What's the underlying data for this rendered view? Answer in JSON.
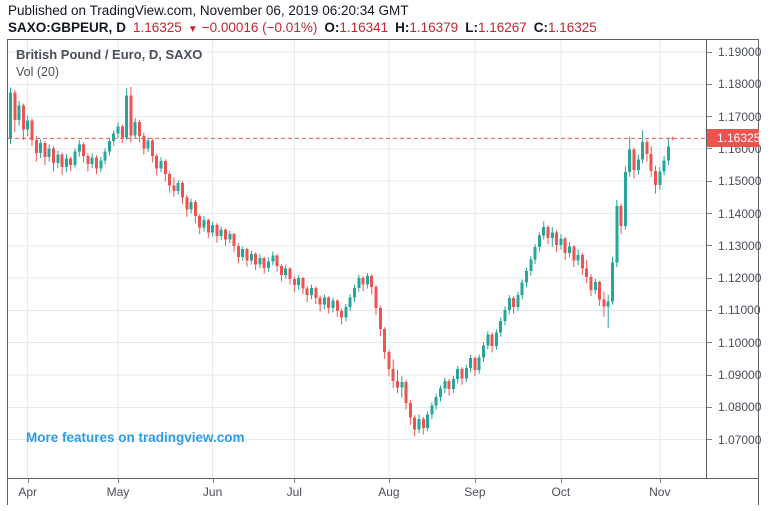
{
  "header": {
    "published": "Published on TradingView.com, November 06, 2019 06:20:34 GMT",
    "symbol": "SAXO:GBPEUR,",
    "timeframe": "D",
    "price": "1.16325",
    "direction_icon": "▼",
    "change": "−0.00016 (−0.01%)",
    "open_label": "O:",
    "open": "1.16341",
    "high_label": "H:",
    "high": "1.16379",
    "low_label": "L:",
    "low": "1.16267",
    "close_label": "C:",
    "close": "1.16325"
  },
  "chart": {
    "title": "British Pound / Euro, D, SAXO",
    "indicator": "Vol (20)",
    "watermark": "More features on tradingview.com",
    "price_label": "1.16325"
  },
  "colors": {
    "up": "#26a69a",
    "down": "#ef5350",
    "price_line": "#ef5350",
    "price_label_bg": "#ef5350",
    "grid": "#e5ebf1",
    "link_blue": "#2d9ce8",
    "header_red": "#c4252f",
    "frame": "#5b6069"
  },
  "chart_data": {
    "type": "candlestick",
    "symbol": "SAXO:GBPEUR",
    "timeframe": "D",
    "title": "British Pound / Euro, D, SAXO",
    "ylim": [
      1.05812,
      1.19372
    ],
    "y_ticks": [
      "1.19000",
      "1.18000",
      "1.17000",
      "1.16000",
      "1.15000",
      "1.14000",
      "1.13000",
      "1.12000",
      "1.11000",
      "1.10000",
      "1.09000",
      "1.08000",
      "1.07000"
    ],
    "month_ticks": [
      {
        "label": "Apr",
        "index": 4
      },
      {
        "label": "May",
        "index": 25
      },
      {
        "label": "Jun",
        "index": 47
      },
      {
        "label": "Jul",
        "index": 66
      },
      {
        "label": "Aug",
        "index": 88
      },
      {
        "label": "Sep",
        "index": 108
      },
      {
        "label": "Oct",
        "index": 128
      },
      {
        "label": "Nov",
        "index": 151
      }
    ],
    "price_line": 1.16325,
    "last": {
      "open": 1.16341,
      "high": 1.16379,
      "low": 1.16267,
      "close": 1.16325
    },
    "candles": [
      [
        1.163,
        1.179,
        1.1615,
        1.1775
      ],
      [
        1.1775,
        1.1782,
        1.1652,
        1.169
      ],
      [
        1.169,
        1.1748,
        1.1672,
        1.1735
      ],
      [
        1.1735,
        1.174,
        1.1628,
        1.166
      ],
      [
        1.166,
        1.1702,
        1.164,
        1.1688
      ],
      [
        1.1688,
        1.1694,
        1.1608,
        1.1628
      ],
      [
        1.1628,
        1.164,
        1.156,
        1.1588
      ],
      [
        1.1588,
        1.163,
        1.1572,
        1.1618
      ],
      [
        1.1618,
        1.1624,
        1.155,
        1.1575
      ],
      [
        1.1575,
        1.1614,
        1.156,
        1.1602
      ],
      [
        1.1602,
        1.1608,
        1.153,
        1.1556
      ],
      [
        1.1556,
        1.1594,
        1.154,
        1.1582
      ],
      [
        1.1582,
        1.1588,
        1.152,
        1.1544
      ],
      [
        1.1544,
        1.1584,
        1.1528,
        1.157
      ],
      [
        1.157,
        1.1576,
        1.1532,
        1.155
      ],
      [
        1.155,
        1.1602,
        1.1542,
        1.1592
      ],
      [
        1.1592,
        1.1628,
        1.1576,
        1.1614
      ],
      [
        1.1614,
        1.162,
        1.1558,
        1.1578
      ],
      [
        1.1578,
        1.1586,
        1.153,
        1.1554
      ],
      [
        1.1554,
        1.1586,
        1.154,
        1.1574
      ],
      [
        1.1574,
        1.158,
        1.1522,
        1.154
      ],
      [
        1.154,
        1.1576,
        1.1528,
        1.1564
      ],
      [
        1.1564,
        1.1602,
        1.1552,
        1.1592
      ],
      [
        1.1592,
        1.1634,
        1.158,
        1.1624
      ],
      [
        1.1624,
        1.1658,
        1.161,
        1.1648
      ],
      [
        1.1648,
        1.1682,
        1.1632,
        1.167
      ],
      [
        1.167,
        1.1676,
        1.1618,
        1.1636
      ],
      [
        1.1636,
        1.1788,
        1.1628,
        1.1766
      ],
      [
        1.1766,
        1.1792,
        1.162,
        1.1642
      ],
      [
        1.1642,
        1.1696,
        1.1634,
        1.1684
      ],
      [
        1.1684,
        1.169,
        1.162,
        1.164
      ],
      [
        1.164,
        1.165,
        1.1582,
        1.1602
      ],
      [
        1.1602,
        1.1636,
        1.159,
        1.1626
      ],
      [
        1.1626,
        1.1632,
        1.1558,
        1.1578
      ],
      [
        1.1578,
        1.1584,
        1.1518,
        1.154
      ],
      [
        1.154,
        1.1574,
        1.1528,
        1.1562
      ],
      [
        1.1562,
        1.1568,
        1.15,
        1.1522
      ],
      [
        1.1522,
        1.153,
        1.1464,
        1.1486
      ],
      [
        1.1486,
        1.1512,
        1.1452,
        1.147
      ],
      [
        1.147,
        1.1504,
        1.1458,
        1.1494
      ],
      [
        1.1494,
        1.15,
        1.143,
        1.145
      ],
      [
        1.145,
        1.1458,
        1.139,
        1.1412
      ],
      [
        1.1412,
        1.1446,
        1.14,
        1.1436
      ],
      [
        1.1436,
        1.1442,
        1.137,
        1.1392
      ],
      [
        1.1392,
        1.1398,
        1.1336,
        1.1356
      ],
      [
        1.1356,
        1.1392,
        1.1344,
        1.138
      ],
      [
        1.138,
        1.1384,
        1.1324,
        1.1342
      ],
      [
        1.1342,
        1.1374,
        1.133,
        1.1364
      ],
      [
        1.1364,
        1.137,
        1.131,
        1.133
      ],
      [
        1.133,
        1.136,
        1.1318,
        1.135
      ],
      [
        1.135,
        1.1354,
        1.13,
        1.132
      ],
      [
        1.132,
        1.1346,
        1.1308,
        1.1336
      ],
      [
        1.1336,
        1.134,
        1.128,
        1.13
      ],
      [
        1.13,
        1.1308,
        1.1246,
        1.1266
      ],
      [
        1.1266,
        1.1298,
        1.1254,
        1.129
      ],
      [
        1.129,
        1.1294,
        1.1236,
        1.1254
      ],
      [
        1.1254,
        1.1286,
        1.1242,
        1.1274
      ],
      [
        1.1274,
        1.128,
        1.1224,
        1.1242
      ],
      [
        1.1242,
        1.1274,
        1.123,
        1.1262
      ],
      [
        1.1262,
        1.1266,
        1.1214,
        1.1232
      ],
      [
        1.1232,
        1.1264,
        1.122,
        1.1252
      ],
      [
        1.1252,
        1.1282,
        1.124,
        1.127
      ],
      [
        1.127,
        1.1274,
        1.122,
        1.1238
      ],
      [
        1.1238,
        1.1244,
        1.119,
        1.121
      ],
      [
        1.121,
        1.1242,
        1.1198,
        1.123
      ],
      [
        1.123,
        1.1234,
        1.118,
        1.1198
      ],
      [
        1.1198,
        1.1206,
        1.1156,
        1.1178
      ],
      [
        1.1178,
        1.121,
        1.1164,
        1.12
      ],
      [
        1.12,
        1.1204,
        1.115,
        1.1168
      ],
      [
        1.1168,
        1.1176,
        1.1126,
        1.1148
      ],
      [
        1.1148,
        1.118,
        1.1134,
        1.117
      ],
      [
        1.117,
        1.1174,
        1.112,
        1.1138
      ],
      [
        1.1138,
        1.1146,
        1.1096,
        1.1118
      ],
      [
        1.1118,
        1.115,
        1.1104,
        1.114
      ],
      [
        1.114,
        1.1144,
        1.109,
        1.1108
      ],
      [
        1.1108,
        1.114,
        1.1094,
        1.113
      ],
      [
        1.113,
        1.1134,
        1.108,
        1.1098
      ],
      [
        1.1098,
        1.1106,
        1.1056,
        1.1078
      ],
      [
        1.1078,
        1.112,
        1.1066,
        1.111
      ],
      [
        1.111,
        1.115,
        1.1098,
        1.114
      ],
      [
        1.114,
        1.118,
        1.1126,
        1.117
      ],
      [
        1.117,
        1.121,
        1.1158,
        1.12
      ],
      [
        1.12,
        1.1206,
        1.116,
        1.118
      ],
      [
        1.118,
        1.1216,
        1.1168,
        1.1206
      ],
      [
        1.1206,
        1.1212,
        1.115,
        1.1172
      ],
      [
        1.1172,
        1.1178,
        1.1086,
        1.1108
      ],
      [
        1.1108,
        1.1116,
        1.102,
        1.1042
      ],
      [
        1.1042,
        1.1048,
        1.095,
        1.0972
      ],
      [
        1.0972,
        1.0978,
        1.0896,
        1.0918
      ],
      [
        1.0918,
        1.0948,
        1.086,
        1.0882
      ],
      [
        1.0882,
        1.0916,
        1.0844,
        1.0862
      ],
      [
        1.0862,
        1.0896,
        1.083,
        1.0878
      ],
      [
        1.0878,
        1.0884,
        1.0794,
        1.0814
      ],
      [
        1.0814,
        1.0822,
        1.0746,
        1.0768
      ],
      [
        1.0768,
        1.0776,
        1.071,
        1.0732
      ],
      [
        1.0732,
        1.0778,
        1.072,
        1.0764
      ],
      [
        1.0764,
        1.077,
        1.0716,
        1.0736
      ],
      [
        1.0736,
        1.0788,
        1.0726,
        1.0778
      ],
      [
        1.0778,
        1.0816,
        1.0764,
        1.0806
      ],
      [
        1.0806,
        1.0842,
        1.0792,
        1.0832
      ],
      [
        1.0832,
        1.0868,
        1.0818,
        1.0858
      ],
      [
        1.0858,
        1.0892,
        1.0844,
        1.0882
      ],
      [
        1.0882,
        1.0888,
        1.0836,
        1.0856
      ],
      [
        1.0856,
        1.0898,
        1.0844,
        1.0888
      ],
      [
        1.0888,
        1.0928,
        1.0874,
        1.0918
      ],
      [
        1.0918,
        1.0924,
        1.087,
        1.089
      ],
      [
        1.089,
        1.0932,
        1.0878,
        1.0922
      ],
      [
        1.0922,
        1.0962,
        1.0908,
        1.0952
      ],
      [
        1.0952,
        1.0958,
        1.0896,
        1.0916
      ],
      [
        1.0916,
        1.0964,
        1.0904,
        1.0954
      ],
      [
        1.0954,
        1.1002,
        1.094,
        1.0992
      ],
      [
        1.0992,
        1.1036,
        1.098,
        1.1026
      ],
      [
        1.1026,
        1.1032,
        1.097,
        1.099
      ],
      [
        1.099,
        1.1042,
        1.0978,
        1.1032
      ],
      [
        1.1032,
        1.1078,
        1.1018,
        1.1068
      ],
      [
        1.1068,
        1.1112,
        1.1054,
        1.1102
      ],
      [
        1.1102,
        1.1148,
        1.1088,
        1.1138
      ],
      [
        1.1138,
        1.1144,
        1.109,
        1.111
      ],
      [
        1.111,
        1.1158,
        1.1098,
        1.1148
      ],
      [
        1.1148,
        1.1196,
        1.1134,
        1.1186
      ],
      [
        1.1186,
        1.1232,
        1.1172,
        1.1222
      ],
      [
        1.1222,
        1.1268,
        1.1208,
        1.1258
      ],
      [
        1.1258,
        1.1306,
        1.1244,
        1.1296
      ],
      [
        1.1296,
        1.1342,
        1.1282,
        1.1332
      ],
      [
        1.1332,
        1.1376,
        1.132,
        1.1358
      ],
      [
        1.1358,
        1.1364,
        1.1304,
        1.1324
      ],
      [
        1.1324,
        1.1358,
        1.1296,
        1.1342
      ],
      [
        1.1342,
        1.1348,
        1.128,
        1.1302
      ],
      [
        1.1302,
        1.1336,
        1.1288,
        1.1322
      ],
      [
        1.1322,
        1.1328,
        1.1256,
        1.1278
      ],
      [
        1.1278,
        1.1312,
        1.1264,
        1.1298
      ],
      [
        1.1298,
        1.1302,
        1.1234,
        1.1254
      ],
      [
        1.1254,
        1.1288,
        1.124,
        1.1272
      ],
      [
        1.1272,
        1.1278,
        1.121,
        1.123
      ],
      [
        1.123,
        1.1256,
        1.1184,
        1.1204
      ],
      [
        1.1204,
        1.1212,
        1.1144,
        1.1164
      ],
      [
        1.1164,
        1.1198,
        1.115,
        1.1188
      ],
      [
        1.1188,
        1.1192,
        1.1114,
        1.1134
      ],
      [
        1.1134,
        1.1158,
        1.108,
        1.1112
      ],
      [
        1.1112,
        1.1148,
        1.1046,
        1.1128
      ],
      [
        1.1128,
        1.1266,
        1.1118,
        1.1248
      ],
      [
        1.1248,
        1.1442,
        1.1234,
        1.1424
      ],
      [
        1.1424,
        1.143,
        1.1336,
        1.1362
      ],
      [
        1.1362,
        1.1546,
        1.135,
        1.1528
      ],
      [
        1.1528,
        1.1638,
        1.1514,
        1.1598
      ],
      [
        1.1598,
        1.1604,
        1.1508,
        1.1534
      ],
      [
        1.1534,
        1.1582,
        1.152,
        1.1568
      ],
      [
        1.1568,
        1.1658,
        1.1556,
        1.1622
      ],
      [
        1.1622,
        1.1628,
        1.156,
        1.1584
      ],
      [
        1.1584,
        1.1608,
        1.1512,
        1.1532
      ],
      [
        1.1532,
        1.1548,
        1.1462,
        1.1488
      ],
      [
        1.1488,
        1.1544,
        1.1474,
        1.153
      ],
      [
        1.153,
        1.1578,
        1.1518,
        1.1564
      ],
      [
        1.1564,
        1.1635,
        1.155,
        1.1608
      ],
      [
        1.16341,
        1.16379,
        1.16267,
        1.16325
      ]
    ]
  }
}
